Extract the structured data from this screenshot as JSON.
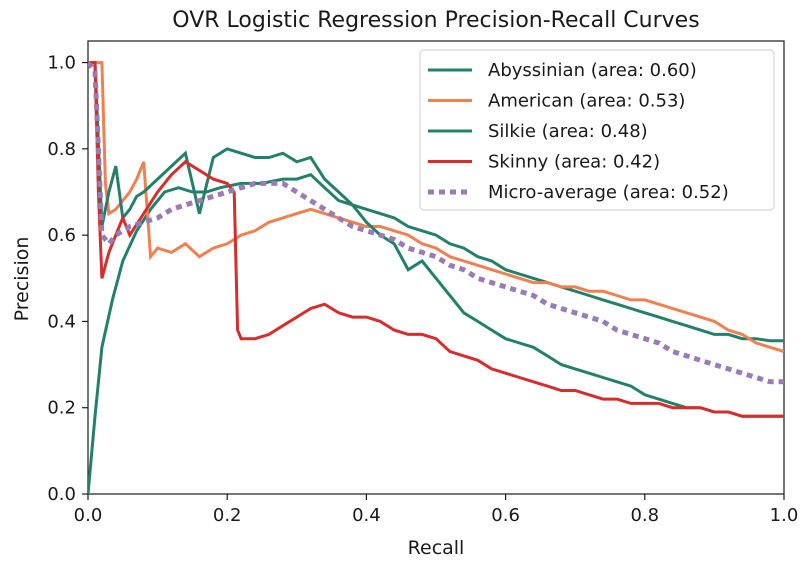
{
  "chart_data": {
    "type": "line",
    "title": "OVR Logistic Regression Precision-Recall Curves",
    "xlabel": "Recall",
    "ylabel": "Precision",
    "xlim": [
      0,
      1
    ],
    "ylim": [
      0,
      1.05
    ],
    "xticks": [
      "0.0",
      "0.2",
      "0.4",
      "0.6",
      "0.8",
      "1.0"
    ],
    "xtick_values": [
      0,
      0.2,
      0.4,
      0.6,
      0.8,
      1.0
    ],
    "yticks": [
      "0.0",
      "0.2",
      "0.4",
      "0.6",
      "0.8",
      "1.0"
    ],
    "ytick_values": [
      0,
      0.2,
      0.4,
      0.6,
      0.8,
      1.0
    ],
    "grid": false,
    "legend_position": "top-right",
    "series": [
      {
        "name": "Abyssinian (area: 0.60)",
        "color": "#23806a",
        "dash": "solid",
        "x": [
          0.0,
          0.0,
          0.01,
          0.02,
          0.035,
          0.05,
          0.07,
          0.09,
          0.11,
          0.13,
          0.15,
          0.17,
          0.19,
          0.22,
          0.25,
          0.28,
          0.3,
          0.32,
          0.34,
          0.36,
          0.38,
          0.4,
          0.42,
          0.44,
          0.46,
          0.48,
          0.5,
          0.52,
          0.54,
          0.56,
          0.58,
          0.6,
          0.62,
          0.64,
          0.66,
          0.68,
          0.7,
          0.72,
          0.74,
          0.76,
          0.78,
          0.8,
          0.82,
          0.84,
          0.86,
          0.88,
          0.9,
          0.92,
          0.94,
          0.96,
          0.98,
          1.0
        ],
        "y": [
          0.0,
          0.0,
          0.18,
          0.34,
          0.45,
          0.54,
          0.61,
          0.66,
          0.7,
          0.71,
          0.7,
          0.7,
          0.71,
          0.72,
          0.72,
          0.73,
          0.73,
          0.74,
          0.71,
          0.68,
          0.67,
          0.66,
          0.65,
          0.64,
          0.62,
          0.61,
          0.6,
          0.58,
          0.57,
          0.55,
          0.54,
          0.52,
          0.51,
          0.5,
          0.49,
          0.48,
          0.47,
          0.46,
          0.45,
          0.44,
          0.43,
          0.42,
          0.41,
          0.4,
          0.39,
          0.38,
          0.37,
          0.37,
          0.36,
          0.36,
          0.355,
          0.355
        ]
      },
      {
        "name": "American (area: 0.53)",
        "color": "#f08050",
        "dash": "solid",
        "x": [
          0.0,
          0.02,
          0.025,
          0.03,
          0.04,
          0.05,
          0.06,
          0.07,
          0.08,
          0.09,
          0.1,
          0.12,
          0.14,
          0.16,
          0.18,
          0.2,
          0.22,
          0.24,
          0.26,
          0.28,
          0.3,
          0.32,
          0.34,
          0.36,
          0.38,
          0.4,
          0.42,
          0.44,
          0.46,
          0.48,
          0.5,
          0.52,
          0.54,
          0.56,
          0.58,
          0.6,
          0.62,
          0.64,
          0.66,
          0.68,
          0.7,
          0.72,
          0.74,
          0.76,
          0.78,
          0.8,
          0.82,
          0.84,
          0.86,
          0.88,
          0.9,
          0.92,
          0.94,
          0.96,
          0.98,
          1.0
        ],
        "y": [
          1.0,
          1.0,
          0.72,
          0.65,
          0.66,
          0.68,
          0.7,
          0.73,
          0.77,
          0.55,
          0.57,
          0.56,
          0.58,
          0.55,
          0.57,
          0.58,
          0.6,
          0.61,
          0.63,
          0.64,
          0.65,
          0.66,
          0.65,
          0.64,
          0.63,
          0.62,
          0.62,
          0.61,
          0.6,
          0.58,
          0.57,
          0.55,
          0.54,
          0.53,
          0.52,
          0.51,
          0.5,
          0.49,
          0.49,
          0.48,
          0.48,
          0.47,
          0.47,
          0.46,
          0.45,
          0.45,
          0.44,
          0.43,
          0.42,
          0.41,
          0.4,
          0.38,
          0.37,
          0.35,
          0.34,
          0.33
        ]
      },
      {
        "name": "Silkie (area: 0.48)",
        "color": "#23806a",
        "dash": "solid",
        "x": [
          0.0,
          0.01,
          0.02,
          0.03,
          0.04,
          0.05,
          0.06,
          0.07,
          0.08,
          0.1,
          0.12,
          0.14,
          0.16,
          0.18,
          0.2,
          0.22,
          0.24,
          0.26,
          0.28,
          0.3,
          0.32,
          0.34,
          0.36,
          0.38,
          0.4,
          0.42,
          0.44,
          0.46,
          0.48,
          0.5,
          0.52,
          0.54,
          0.56,
          0.58,
          0.6,
          0.62,
          0.64,
          0.66,
          0.68,
          0.7,
          0.72,
          0.74,
          0.76,
          0.78,
          0.8,
          0.82,
          0.84,
          0.86,
          0.88,
          0.9,
          0.92,
          0.94,
          0.96,
          0.98,
          1.0
        ],
        "y": [
          1.0,
          1.0,
          0.62,
          0.7,
          0.76,
          0.64,
          0.66,
          0.69,
          0.7,
          0.73,
          0.76,
          0.79,
          0.65,
          0.78,
          0.8,
          0.79,
          0.78,
          0.78,
          0.79,
          0.77,
          0.78,
          0.73,
          0.7,
          0.67,
          0.63,
          0.6,
          0.58,
          0.52,
          0.54,
          0.5,
          0.46,
          0.42,
          0.4,
          0.38,
          0.36,
          0.35,
          0.34,
          0.32,
          0.3,
          0.29,
          0.28,
          0.27,
          0.26,
          0.25,
          0.23,
          0.22,
          0.21,
          0.2,
          0.2,
          0.19,
          0.19,
          0.18,
          0.18,
          0.18,
          0.18
        ]
      },
      {
        "name": "Skinny (area: 0.42)",
        "color": "#d62d2d",
        "dash": "solid",
        "x": [
          0.0,
          0.01,
          0.015,
          0.02,
          0.03,
          0.04,
          0.05,
          0.06,
          0.08,
          0.1,
          0.12,
          0.14,
          0.16,
          0.18,
          0.2,
          0.21,
          0.215,
          0.22,
          0.24,
          0.26,
          0.28,
          0.3,
          0.32,
          0.34,
          0.36,
          0.38,
          0.4,
          0.42,
          0.44,
          0.46,
          0.48,
          0.5,
          0.52,
          0.54,
          0.56,
          0.58,
          0.6,
          0.62,
          0.64,
          0.66,
          0.68,
          0.7,
          0.72,
          0.74,
          0.76,
          0.78,
          0.8,
          0.82,
          0.84,
          0.86,
          0.88,
          0.9,
          0.92,
          0.94,
          0.96,
          0.98,
          1.0
        ],
        "y": [
          1.0,
          1.0,
          0.7,
          0.5,
          0.56,
          0.6,
          0.64,
          0.6,
          0.65,
          0.7,
          0.74,
          0.77,
          0.75,
          0.73,
          0.72,
          0.7,
          0.38,
          0.36,
          0.36,
          0.37,
          0.39,
          0.41,
          0.43,
          0.44,
          0.42,
          0.41,
          0.41,
          0.4,
          0.38,
          0.37,
          0.37,
          0.36,
          0.33,
          0.32,
          0.31,
          0.29,
          0.28,
          0.27,
          0.26,
          0.25,
          0.24,
          0.24,
          0.23,
          0.22,
          0.22,
          0.21,
          0.21,
          0.21,
          0.2,
          0.2,
          0.2,
          0.19,
          0.19,
          0.18,
          0.18,
          0.18,
          0.18
        ]
      },
      {
        "name": "Micro-average (area: 0.52)",
        "color": "#9a7bb3",
        "dash": "dotted",
        "x": [
          0.0,
          0.01,
          0.015,
          0.02,
          0.03,
          0.04,
          0.05,
          0.06,
          0.08,
          0.1,
          0.12,
          0.14,
          0.16,
          0.18,
          0.2,
          0.22,
          0.24,
          0.26,
          0.28,
          0.3,
          0.32,
          0.34,
          0.36,
          0.38,
          0.4,
          0.42,
          0.44,
          0.46,
          0.48,
          0.5,
          0.52,
          0.54,
          0.56,
          0.58,
          0.6,
          0.62,
          0.64,
          0.66,
          0.68,
          0.7,
          0.72,
          0.74,
          0.76,
          0.78,
          0.8,
          0.82,
          0.84,
          0.86,
          0.88,
          0.9,
          0.92,
          0.94,
          0.96,
          0.98,
          1.0
        ],
        "y": [
          1.0,
          0.98,
          0.8,
          0.6,
          0.58,
          0.6,
          0.61,
          0.62,
          0.63,
          0.64,
          0.66,
          0.67,
          0.68,
          0.69,
          0.7,
          0.71,
          0.72,
          0.72,
          0.72,
          0.7,
          0.68,
          0.66,
          0.64,
          0.62,
          0.61,
          0.6,
          0.59,
          0.57,
          0.56,
          0.55,
          0.53,
          0.52,
          0.5,
          0.49,
          0.48,
          0.47,
          0.46,
          0.44,
          0.43,
          0.42,
          0.41,
          0.4,
          0.38,
          0.37,
          0.36,
          0.35,
          0.33,
          0.32,
          0.31,
          0.3,
          0.29,
          0.28,
          0.27,
          0.26,
          0.26
        ]
      }
    ]
  }
}
